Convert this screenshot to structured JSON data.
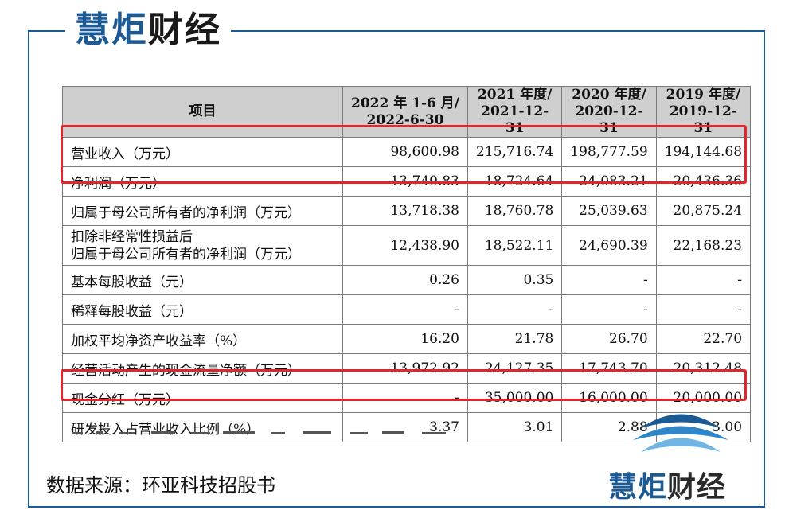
{
  "logo": {
    "text_main": "慧炬",
    "text_dark": "财经"
  },
  "table": {
    "header": {
      "item": "项目",
      "col1": "2022 年 1-6 月/\n2022-6-30",
      "col2": "2021 年度/\n2021-12-31",
      "col3": "2020 年度/\n2020-12-31",
      "col4": "2019 年度/\n2019-12-31"
    },
    "rows": [
      {
        "label": "营业收入（万元）",
        "v1": "98,600.98",
        "v2": "215,716.74",
        "v3": "198,777.59",
        "v4": "194,144.68"
      },
      {
        "label": "净利润（万元）",
        "v1": "13,740.83",
        "v2": "18,724.64",
        "v3": "24,083.21",
        "v4": "20,436.36"
      },
      {
        "label": "归属于母公司所有者的净利润（万元）",
        "v1": "13,718.38",
        "v2": "18,760.78",
        "v3": "25,039.63",
        "v4": "20,875.24"
      },
      {
        "label": "扣除非经常性损益后\n归属于母公司所有者的净利润（万元）",
        "v1": "12,438.90",
        "v2": "18,522.11",
        "v3": "24,690.39",
        "v4": "22,168.23"
      },
      {
        "label": "基本每股收益（元）",
        "v1": "0.26",
        "v2": "0.35",
        "v3": "-",
        "v4": "-"
      },
      {
        "label": "稀释每股收益（元）",
        "v1": "-",
        "v2": "-",
        "v3": "-",
        "v4": "-"
      },
      {
        "label": "加权平均净资产收益率（%）",
        "v1": "16.20",
        "v2": "21.78",
        "v3": "26.70",
        "v4": "22.70"
      },
      {
        "label": "经营活动产生的现金流量净额（万元）",
        "v1": "13,972.92",
        "v2": "24,127.35",
        "v3": "17,743.70",
        "v4": "20,312.48"
      },
      {
        "label": "现金分红（万元）",
        "v1": "-",
        "v2": "35,000.00",
        "v3": "16,000.00",
        "v4": "20,000.00"
      },
      {
        "label": "研发投入占营业收入比例（%）",
        "v1": "3.37",
        "v2": "3.01",
        "v3": "2.88",
        "v4": "3.00"
      }
    ]
  },
  "source_note": "数据来源：环亚科技招股书",
  "colors": {
    "brand_blue": "#1c5a96",
    "highlight_red": "#e0262b",
    "header_gray": "#cfcfcf"
  }
}
